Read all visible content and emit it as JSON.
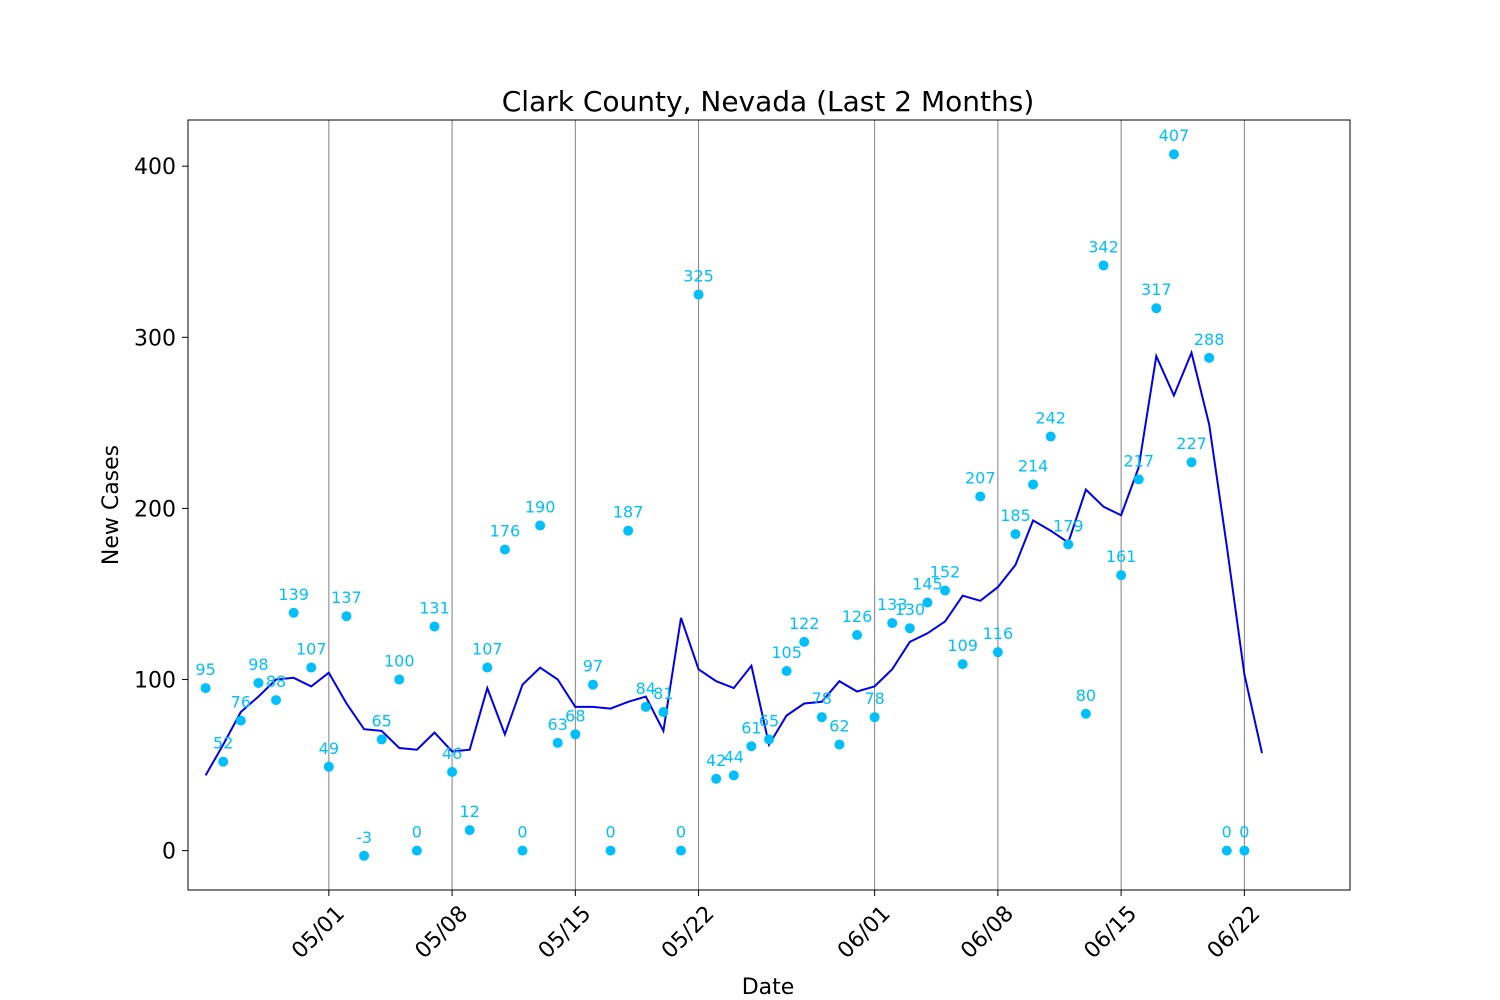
{
  "chart_data": {
    "type": "scatter",
    "title": "Clark County, Nevada (Last 2 Months)",
    "xlabel": "Date",
    "ylabel": "New Cases",
    "x_start": "04/24",
    "x_end": "06/24",
    "xlim": [
      "04/23",
      "06/28"
    ],
    "ylim": [
      -23,
      427
    ],
    "yticks": [
      0,
      100,
      200,
      300,
      400
    ],
    "xticks": [
      "05/01",
      "05/08",
      "05/15",
      "05/22",
      "06/01",
      "06/08",
      "06/15",
      "06/22"
    ],
    "vertical_grid": true,
    "colors": {
      "points": "#00bfff",
      "line": "#0000ee",
      "grid": "#808080"
    },
    "series": [
      {
        "kind": "points",
        "values": [
          95,
          52,
          76,
          98,
          88,
          139,
          107,
          49,
          137,
          -3,
          65,
          100,
          0,
          131,
          46,
          12,
          107,
          176,
          0,
          190,
          63,
          68,
          97,
          0,
          187,
          84,
          81,
          0,
          325,
          42,
          44,
          61,
          65,
          105,
          122,
          78,
          62,
          126,
          78,
          133,
          130,
          145,
          152,
          109,
          207,
          116,
          185,
          214,
          242,
          179,
          80,
          342,
          161,
          217,
          317,
          407,
          227,
          288,
          0,
          0
        ]
      },
      {
        "kind": "line",
        "values": [
          44,
          62,
          81,
          90,
          100,
          101,
          96,
          104,
          86,
          71,
          70,
          60,
          59,
          69,
          58,
          59,
          95,
          68,
          97,
          107,
          100,
          84,
          84,
          83,
          87,
          90,
          70,
          136,
          106,
          99,
          95,
          108,
          62,
          79,
          86,
          87,
          99,
          93,
          96,
          106,
          122,
          127,
          134,
          149,
          146,
          154,
          167,
          193,
          187,
          180,
          211,
          201,
          196,
          224,
          289,
          266,
          291,
          249,
          178,
          103,
          57
        ]
      }
    ]
  }
}
